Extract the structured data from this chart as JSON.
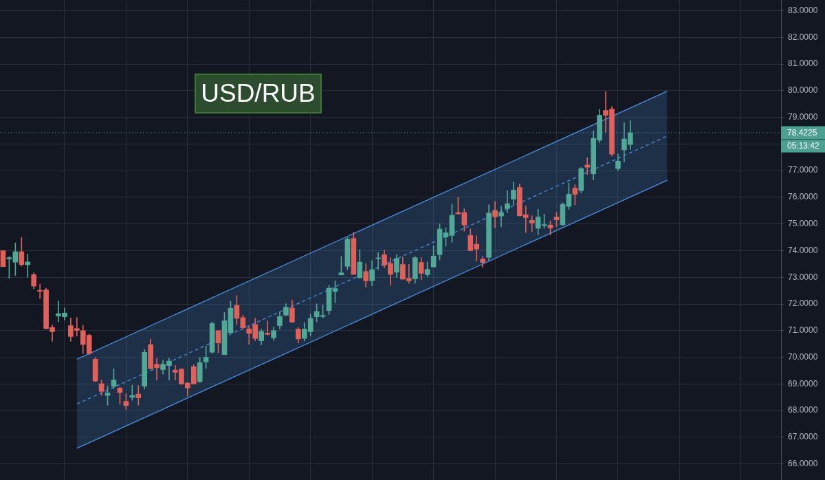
{
  "chart_data": {
    "type": "candlestick",
    "title": "USD/RUB",
    "categories": [
      null,
      null,
      null,
      null,
      null,
      null,
      null,
      null,
      null,
      null,
      null,
      null,
      null,
      null,
      null,
      null,
      null,
      null,
      null,
      null,
      null,
      null,
      null,
      null,
      null,
      null,
      null,
      null,
      null,
      null,
      null,
      null,
      null,
      null,
      null,
      null,
      null,
      null,
      null,
      null,
      null,
      null,
      null,
      null,
      null,
      null,
      null,
      null,
      null,
      null,
      null,
      null,
      null,
      null,
      null,
      null,
      null,
      null,
      null,
      null,
      null,
      null,
      null,
      null,
      null,
      null,
      null,
      null,
      null,
      null,
      null,
      null,
      null,
      null,
      null,
      null,
      null,
      null,
      null,
      null,
      null,
      null,
      null,
      null,
      null,
      null,
      null,
      null,
      null,
      null,
      null,
      null,
      null,
      null,
      null,
      null,
      null,
      null,
      null,
      null,
      null,
      null,
      null,
      null,
      null,
      null,
      null,
      null,
      null,
      null,
      null,
      null,
      null,
      null,
      null,
      null,
      null,
      null,
      null,
      null,
      null,
      null,
      null,
      null,
      null,
      null,
      null
    ],
    "series": [
      {
        "type": "candlestick",
        "ohlc": [
          [
            74.0,
            74.0,
            73.4,
            73.4
          ],
          [
            73.69,
            73.78,
            72.96,
            73.74
          ],
          [
            73.57,
            74.29,
            73.07,
            73.96
          ],
          [
            73.96,
            74.5,
            73.42,
            73.48
          ],
          [
            73.47,
            73.87,
            73.0,
            73.58
          ],
          [
            73.1,
            73.17,
            72.57,
            72.67
          ],
          [
            72.51,
            72.74,
            72.21,
            72.48
          ],
          [
            72.53,
            72.6,
            71.06,
            71.08
          ],
          [
            71.12,
            71.21,
            70.6,
            70.96
          ],
          [
            71.55,
            72.11,
            71.33,
            71.64
          ],
          [
            71.52,
            71.85,
            71.4,
            71.66
          ],
          [
            71.19,
            71.48,
            70.6,
            70.78
          ],
          [
            71.08,
            71.49,
            70.8,
            71.01
          ],
          [
            71.0,
            71.2,
            70.13,
            70.48
          ],
          [
            70.83,
            70.87,
            70.1,
            70.14
          ],
          [
            69.93,
            69.99,
            69.08,
            69.11
          ],
          [
            69.01,
            69.15,
            68.57,
            68.72
          ],
          [
            68.57,
            68.93,
            68.2,
            68.67
          ],
          [
            68.91,
            69.57,
            68.83,
            69.15
          ],
          [
            68.85,
            68.89,
            68.24,
            68.68
          ],
          [
            68.35,
            68.63,
            68.04,
            68.19
          ],
          [
            68.5,
            68.95,
            68.39,
            68.57
          ],
          [
            68.62,
            68.94,
            68.2,
            68.48
          ],
          [
            68.92,
            70.29,
            68.81,
            70.19
          ],
          [
            70.48,
            70.69,
            69.57,
            69.57
          ],
          [
            69.74,
            69.96,
            69.15,
            69.61
          ],
          [
            69.54,
            69.89,
            69.37,
            69.74
          ],
          [
            69.69,
            69.97,
            69.15,
            69.86
          ],
          [
            69.52,
            69.69,
            69.15,
            69.44
          ],
          [
            69.56,
            69.58,
            68.98,
            69.0
          ],
          [
            69.04,
            69.04,
            68.55,
            68.85
          ],
          [
            69.65,
            69.72,
            69.0,
            69.0
          ],
          [
            69.09,
            70.0,
            69.05,
            69.8
          ],
          [
            69.83,
            70.42,
            69.58,
            70.0
          ],
          [
            70.19,
            71.33,
            70.15,
            71.27
          ],
          [
            71.0,
            71.0,
            70.17,
            70.54
          ],
          [
            70.1,
            71.68,
            70.1,
            71.37
          ],
          [
            70.92,
            72.11,
            70.92,
            71.84
          ],
          [
            71.95,
            72.31,
            71.23,
            71.46
          ],
          [
            71.49,
            71.58,
            71.06,
            71.11
          ],
          [
            71.07,
            71.19,
            70.49,
            70.9
          ],
          [
            71.23,
            71.46,
            70.62,
            70.71
          ],
          [
            70.62,
            71.06,
            70.47,
            70.97
          ],
          [
            70.91,
            71.36,
            70.84,
            70.86
          ],
          [
            70.73,
            71.13,
            70.64,
            71.0
          ],
          [
            71.19,
            71.71,
            71.06,
            71.53
          ],
          [
            71.58,
            72.01,
            71.55,
            71.88
          ],
          [
            71.85,
            72.15,
            71.32,
            71.32
          ],
          [
            71.06,
            71.12,
            70.54,
            70.69
          ],
          [
            70.71,
            71.3,
            70.61,
            71.06
          ],
          [
            70.96,
            71.62,
            70.81,
            71.46
          ],
          [
            71.52,
            72.01,
            71.33,
            71.72
          ],
          [
            71.53,
            71.97,
            71.47,
            71.57
          ],
          [
            71.75,
            72.7,
            71.6,
            72.59
          ],
          [
            72.47,
            72.87,
            72.05,
            72.58
          ],
          [
            73.09,
            73.78,
            73.09,
            73.17
          ],
          [
            73.41,
            74.5,
            73.29,
            74.43
          ],
          [
            74.46,
            74.69,
            73.11,
            73.11
          ],
          [
            72.98,
            74.03,
            72.98,
            73.57
          ],
          [
            73.22,
            73.51,
            72.63,
            72.87
          ],
          [
            72.87,
            73.63,
            72.68,
            73.29
          ],
          [
            73.7,
            73.93,
            73.29,
            73.73
          ],
          [
            73.85,
            74.02,
            73.35,
            73.46
          ],
          [
            73.52,
            73.74,
            72.7,
            73.11
          ],
          [
            73.19,
            73.85,
            73.0,
            73.71
          ],
          [
            73.48,
            73.76,
            72.93,
            72.93
          ],
          [
            72.96,
            73.49,
            72.78,
            72.87
          ],
          [
            72.94,
            73.78,
            72.78,
            73.74
          ],
          [
            73.56,
            73.74,
            72.91,
            73.15
          ],
          [
            73.1,
            73.58,
            73.03,
            73.3
          ],
          [
            73.39,
            74.18,
            73.39,
            73.8
          ],
          [
            73.85,
            75.01,
            73.65,
            74.81
          ],
          [
            74.51,
            74.86,
            74.17,
            74.67
          ],
          [
            74.57,
            75.74,
            74.32,
            75.33
          ],
          [
            75.43,
            76.0,
            75.36,
            75.38
          ],
          [
            75.43,
            75.57,
            74.73,
            74.96
          ],
          [
            74.57,
            74.82,
            74.0,
            74.0
          ],
          [
            74.24,
            74.56,
            73.61,
            74.06
          ],
          [
            73.68,
            73.78,
            73.37,
            73.56
          ],
          [
            73.75,
            75.72,
            73.63,
            75.41
          ],
          [
            75.51,
            75.85,
            74.86,
            75.27
          ],
          [
            75.3,
            75.67,
            74.9,
            75.43
          ],
          [
            75.58,
            76.25,
            75.42,
            75.76
          ],
          [
            75.93,
            76.58,
            75.72,
            76.27
          ],
          [
            76.37,
            76.5,
            75.29,
            75.31
          ],
          [
            75.35,
            75.67,
            74.68,
            75.24
          ],
          [
            75.14,
            75.31,
            74.72,
            75.04
          ],
          [
            74.84,
            75.55,
            74.6,
            75.26
          ],
          [
            74.94,
            75.37,
            74.84,
            74.98
          ],
          [
            74.96,
            75.11,
            74.59,
            74.85
          ],
          [
            75.26,
            75.43,
            74.9,
            75.16
          ],
          [
            74.97,
            75.8,
            74.94,
            75.74
          ],
          [
            75.66,
            76.54,
            75.55,
            76.12
          ],
          [
            76.35,
            76.47,
            75.72,
            76.11
          ],
          [
            76.25,
            77.12,
            76.17,
            77.08
          ],
          [
            77.21,
            77.49,
            76.86,
            77.13
          ],
          [
            76.88,
            78.5,
            76.65,
            78.21
          ],
          [
            78.14,
            79.3,
            78.05,
            79.08
          ],
          [
            79.26,
            79.97,
            78.44,
            79.07
          ],
          [
            79.31,
            79.41,
            77.55,
            77.62
          ],
          [
            77.08,
            77.62,
            77.0,
            77.36
          ],
          [
            77.78,
            78.81,
            77.32,
            78.19
          ],
          [
            77.98,
            78.88,
            77.79,
            78.4225
          ],
          null,
          null,
          null,
          null,
          null,
          null,
          null,
          null,
          null,
          null,
          null,
          null,
          null,
          null,
          null,
          null,
          null,
          null,
          null,
          null,
          null,
          null,
          null,
          null
        ],
        "colors": [
          "#e2605a",
          "#52a896",
          "#52a896",
          "#e2605a",
          "#52a896",
          "#e2605a",
          "#e2605a",
          "#e2605a",
          "#e2605a",
          "#52a896",
          "#52a896",
          "#e2605a",
          "#e2605a",
          "#e2605a",
          "#e2605a",
          "#e2605a",
          "#e2605a",
          "#52a896",
          "#52a896",
          "#e2605a",
          "#e2605a",
          "#52a896",
          "#e2605a",
          "#52a896",
          "#e2605a",
          "#e2605a",
          "#52a896",
          "#52a896",
          "#e2605a",
          "#e2605a",
          "#e2605a",
          "#e2605a",
          "#52a896",
          "#52a896",
          "#52a896",
          "#e2605a",
          "#52a896",
          "#52a896",
          "#e2605a",
          "#e2605a",
          "#e2605a",
          "#e2605a",
          "#52a896",
          "#e2605a",
          "#52a896",
          "#52a896",
          "#52a896",
          "#e2605a",
          "#e2605a",
          "#52a896",
          "#52a896",
          "#52a896",
          "#52a896",
          "#52a896",
          "#52a896",
          "#52a896",
          "#52a896",
          "#e2605a",
          "#52a896",
          "#e2605a",
          "#52a896",
          "#52a896",
          "#e2605a",
          "#e2605a",
          "#52a896",
          "#e2605a",
          "#e2605a",
          "#52a896",
          "#e2605a",
          "#52a896",
          "#52a896",
          "#52a896",
          "#52a896",
          "#52a896",
          "#e2605a",
          "#e2605a",
          "#e2605a",
          "#e2605a",
          "#e2605a",
          "#52a896",
          "#e2605a",
          "#52a896",
          "#52a896",
          "#52a896",
          "#e2605a",
          "#e2605a",
          "#e2605a",
          "#52a896",
          "#52a896",
          "#e2605a",
          "#e2605a",
          "#52a896",
          "#52a896",
          "#e2605a",
          "#52a896",
          "#e2605a",
          "#52a896",
          "#52a896",
          "#e2605a",
          "#e2605a",
          "#52a896",
          "#52a896",
          "#52a896",
          null,
          null,
          null,
          null,
          null,
          null,
          null,
          null,
          null,
          null,
          null,
          null,
          null,
          null,
          null,
          null,
          null,
          null,
          null,
          null,
          null,
          null,
          null,
          null
        ]
      },
      {
        "type": "line",
        "color": "#4a90e2",
        "line_style": "dashed",
        "values": [
          null,
          null,
          null,
          null,
          null,
          null,
          null,
          null,
          null,
          null,
          null,
          null,
          68.25,
          null,
          null,
          null,
          null,
          null,
          null,
          null,
          null,
          null,
          null,
          null,
          null,
          null,
          null,
          null,
          null,
          null,
          null,
          null,
          null,
          null,
          null,
          null,
          null,
          null,
          null,
          null,
          null,
          null,
          null,
          null,
          null,
          null,
          null,
          null,
          null,
          null,
          null,
          null,
          null,
          null,
          null,
          null,
          null,
          null,
          null,
          null,
          null,
          null,
          null,
          null,
          null,
          null,
          null,
          null,
          null,
          null,
          null,
          null,
          null,
          null,
          null,
          null,
          null,
          null,
          null,
          null,
          null,
          null,
          null,
          null,
          null,
          null,
          null,
          null,
          null,
          null,
          null,
          null,
          null,
          null,
          null,
          null,
          null,
          null,
          null,
          null,
          null,
          null,
          null,
          null,
          null,
          null,
          null,
          null,
          78.3,
          null,
          null,
          null,
          null,
          null,
          null,
          null,
          null,
          null,
          null,
          null,
          null,
          null,
          null,
          null,
          null,
          null,
          null
        ],
        "upper": [
          null,
          null,
          null,
          null,
          null,
          null,
          null,
          null,
          null,
          null,
          null,
          null,
          69.93,
          null,
          null,
          null,
          null,
          null,
          null,
          null,
          null,
          null,
          null,
          null,
          null,
          null,
          null,
          null,
          null,
          null,
          null,
          null,
          null,
          null,
          null,
          null,
          null,
          null,
          null,
          null,
          null,
          null,
          null,
          null,
          null,
          null,
          null,
          null,
          null,
          null,
          null,
          null,
          null,
          null,
          null,
          null,
          null,
          null,
          null,
          null,
          null,
          null,
          null,
          null,
          null,
          null,
          null,
          null,
          null,
          null,
          null,
          null,
          null,
          null,
          null,
          null,
          null,
          null,
          null,
          null,
          null,
          null,
          null,
          null,
          null,
          null,
          null,
          null,
          null,
          null,
          null,
          null,
          null,
          null,
          null,
          null,
          null,
          null,
          null,
          null,
          null,
          null,
          null,
          null,
          null,
          null,
          null,
          null,
          79.98,
          null,
          null,
          null,
          null,
          null,
          null,
          null,
          null,
          null,
          null,
          null,
          null,
          null,
          null,
          null,
          null,
          null,
          null
        ],
        "lower": [
          null,
          null,
          null,
          null,
          null,
          null,
          null,
          null,
          null,
          null,
          null,
          null,
          66.59,
          null,
          null,
          null,
          null,
          null,
          null,
          null,
          null,
          null,
          null,
          null,
          null,
          null,
          null,
          null,
          null,
          null,
          null,
          null,
          null,
          null,
          null,
          null,
          null,
          null,
          null,
          null,
          null,
          null,
          null,
          null,
          null,
          null,
          null,
          null,
          null,
          null,
          null,
          null,
          null,
          null,
          null,
          null,
          null,
          null,
          null,
          null,
          null,
          null,
          null,
          null,
          null,
          null,
          null,
          null,
          null,
          null,
          null,
          null,
          null,
          null,
          null,
          null,
          null,
          null,
          null,
          null,
          null,
          null,
          null,
          null,
          null,
          null,
          null,
          null,
          null,
          null,
          null,
          null,
          null,
          null,
          null,
          null,
          null,
          null,
          null,
          null,
          null,
          null,
          null,
          null,
          null,
          null,
          null,
          null,
          76.64,
          null,
          null,
          null,
          null,
          null,
          null,
          null,
          null,
          null,
          null,
          null,
          null,
          null,
          null,
          null,
          null,
          null,
          null
        ]
      },
      {
        "type": "line",
        "color": "#4a90e2",
        "line_style": "solid",
        "values": [
          null,
          null,
          null,
          null,
          null,
          null,
          null,
          null,
          null,
          null,
          null,
          null,
          69.93,
          null,
          null,
          null,
          null,
          null,
          null,
          null,
          null,
          null,
          null,
          null,
          null,
          null,
          null,
          null,
          null,
          null,
          null,
          null,
          null,
          null,
          null,
          null,
          null,
          null,
          null,
          null,
          null,
          null,
          null,
          null,
          null,
          null,
          null,
          null,
          null,
          null,
          null,
          null,
          null,
          null,
          null,
          null,
          null,
          null,
          null,
          null,
          null,
          null,
          null,
          null,
          null,
          null,
          null,
          null,
          null,
          null,
          null,
          null,
          null,
          null,
          null,
          null,
          null,
          null,
          null,
          null,
          null,
          null,
          null,
          null,
          null,
          null,
          null,
          null,
          null,
          null,
          null,
          null,
          null,
          null,
          null,
          null,
          null,
          null,
          null,
          null,
          null,
          null,
          null,
          null,
          null,
          null,
          null,
          null,
          79.98,
          null,
          null,
          null,
          null,
          null,
          null,
          null,
          null,
          null,
          null,
          null,
          null,
          null,
          null,
          null,
          null,
          null,
          null
        ]
      },
      {
        "type": "line",
        "color": "#4a90e2",
        "line_style": "solid",
        "values": [
          null,
          null,
          null,
          null,
          null,
          null,
          null,
          null,
          null,
          null,
          null,
          null,
          66.59,
          null,
          null,
          null,
          null,
          null,
          null,
          null,
          null,
          null,
          null,
          null,
          null,
          null,
          null,
          null,
          null,
          null,
          null,
          null,
          null,
          null,
          null,
          null,
          null,
          null,
          null,
          null,
          null,
          null,
          null,
          null,
          null,
          null,
          null,
          null,
          null,
          null,
          null,
          null,
          null,
          null,
          null,
          null,
          null,
          null,
          null,
          null,
          null,
          null,
          null,
          null,
          null,
          null,
          null,
          null,
          null,
          null,
          null,
          null,
          null,
          null,
          null,
          null,
          null,
          null,
          null,
          null,
          null,
          null,
          null,
          null,
          null,
          null,
          null,
          null,
          null,
          null,
          null,
          null,
          null,
          null,
          null,
          null,
          null,
          null,
          null,
          null,
          null,
          null,
          null,
          null,
          null,
          null,
          null,
          null,
          76.64,
          null,
          null,
          null,
          null,
          null,
          null,
          null,
          null,
          null,
          null,
          null,
          null,
          null,
          null,
          null,
          null,
          null,
          null
        ]
      }
    ],
    "ylim": [
      65.4,
      83.4
    ],
    "yticks": [
      {
        "value": 66,
        "label": "66.0000"
      },
      {
        "value": 67,
        "label": "67.0000"
      },
      {
        "value": 68,
        "label": "68.0000"
      },
      {
        "value": 69,
        "label": "69.0000"
      },
      {
        "value": 70,
        "label": "70.0000"
      },
      {
        "value": 71,
        "label": "71.0000"
      },
      {
        "value": 72,
        "label": "72.0000"
      },
      {
        "value": 73,
        "label": "73.0000"
      },
      {
        "value": 74,
        "label": "74.0000"
      },
      {
        "value": 75,
        "label": "75.0000"
      },
      {
        "value": 76,
        "label": "76.0000"
      },
      {
        "value": 77,
        "label": "77.0000"
      },
      {
        "value": 78,
        "label": null
      },
      {
        "value": 79,
        "label": "79.0000"
      },
      {
        "value": 80,
        "label": "80.0000"
      },
      {
        "value": 81,
        "label": "81.0000"
      },
      {
        "value": 82,
        "label": "82.0000"
      },
      {
        "value": 83,
        "label": "83.0000"
      }
    ],
    "grid": true,
    "tick_labels": "y",
    "ref_lines": [
      {
        "axis": "y",
        "value": 78.4225,
        "label": "78.4225",
        "color": "#4ba091",
        "line_style": "dotted"
      }
    ],
    "annotations": [
      "05:13:42"
    ]
  }
}
